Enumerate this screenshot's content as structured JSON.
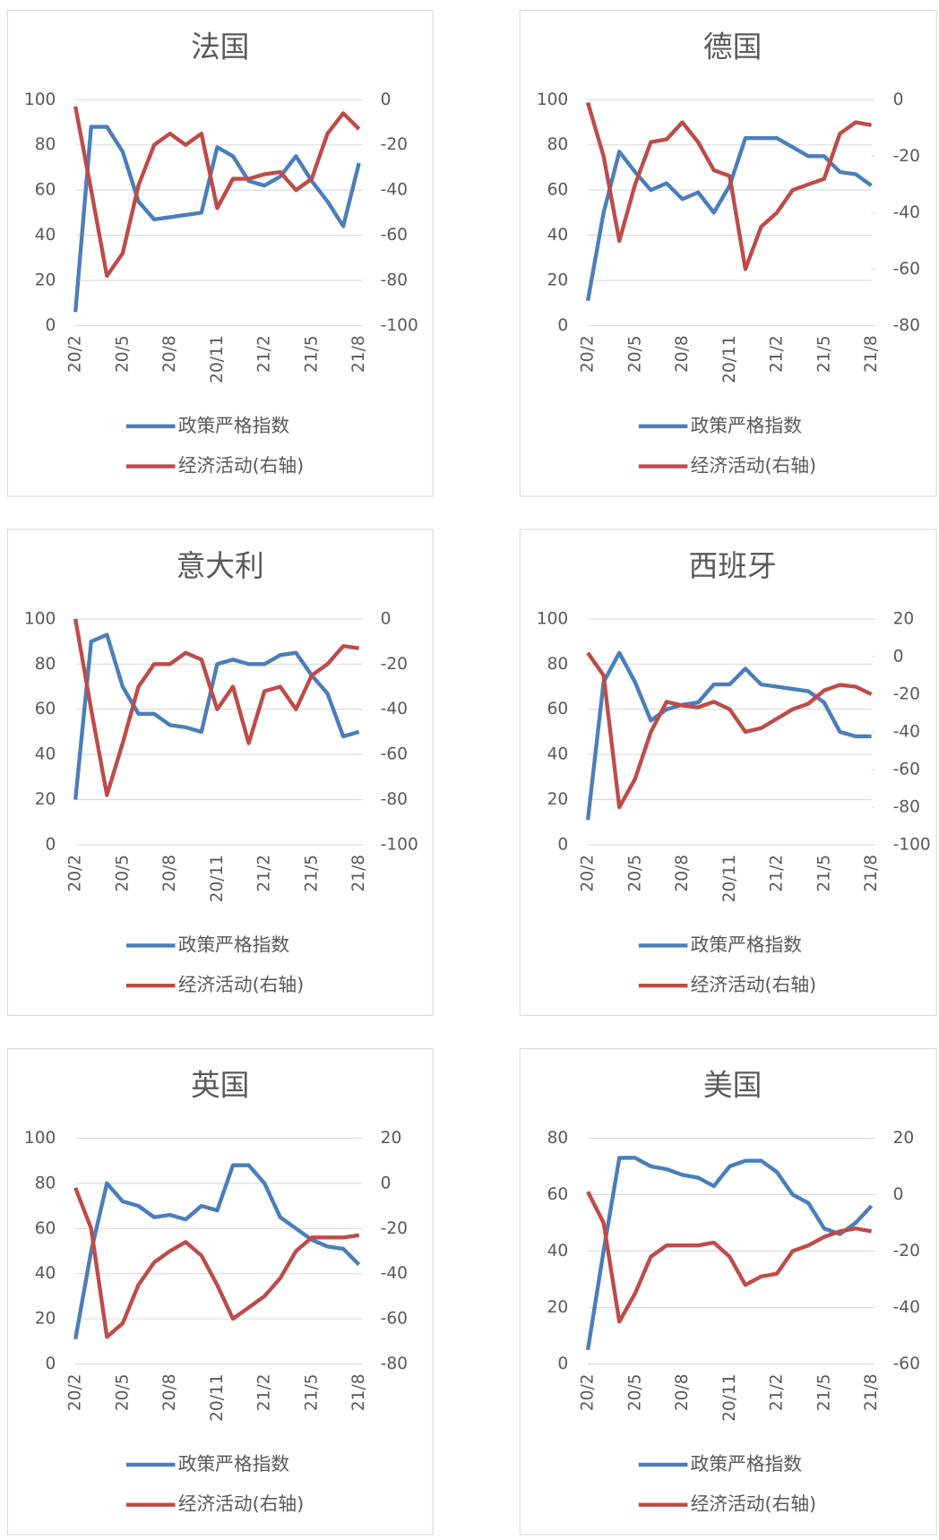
{
  "chart_data": [
    {
      "type": "line",
      "title": "法国",
      "categories": [
        "20/2",
        null,
        null,
        "20/5",
        null,
        null,
        "20/8",
        null,
        null,
        "20/11",
        null,
        null,
        "21/2",
        null,
        null,
        "21/5",
        null,
        null,
        "21/8"
      ],
      "ylim": [
        0,
        100
      ],
      "yticks": [
        0,
        20,
        40,
        60,
        80,
        100
      ],
      "y2lim": [
        -100,
        0
      ],
      "y2ticks": [
        -100,
        -80,
        -60,
        -40,
        -20,
        0
      ],
      "grid": true,
      "legend": "bottom",
      "series": [
        {
          "name": "政策严格指数",
          "color": "#4a7ebb",
          "values": [
            6,
            88,
            88,
            77,
            55,
            47,
            48,
            49,
            50,
            79,
            75,
            64,
            62,
            66,
            75,
            64,
            55,
            44,
            72
          ]
        },
        {
          "name": "经济活动(右轴)",
          "color": "#be4b48",
          "axis": "y2",
          "values": [
            -3,
            -40,
            -78,
            -68,
            -38,
            -20,
            -15,
            -20,
            -15,
            -48,
            -35,
            -35,
            -33,
            -32,
            -40,
            -35,
            -15,
            -6,
            -13
          ]
        }
      ]
    },
    {
      "type": "line",
      "title": "德国",
      "categories": [
        "20/2",
        null,
        null,
        "20/5",
        null,
        null,
        "20/8",
        null,
        null,
        "20/11",
        null,
        null,
        "21/2",
        null,
        null,
        "21/5",
        null,
        null,
        "21/8"
      ],
      "ylim": [
        0,
        100
      ],
      "yticks": [
        0,
        20,
        40,
        60,
        80,
        100
      ],
      "y2lim": [
        -80,
        0
      ],
      "y2ticks": [
        -80,
        -60,
        -40,
        -20,
        0
      ],
      "grid": true,
      "legend": "bottom",
      "series": [
        {
          "name": "政策严格指数",
          "color": "#4a7ebb",
          "values": [
            11,
            50,
            77,
            68,
            60,
            63,
            56,
            59,
            50,
            62,
            83,
            83,
            83,
            79,
            75,
            75,
            68,
            67,
            62
          ]
        },
        {
          "name": "经济活动(右轴)",
          "color": "#be4b48",
          "axis": "y2",
          "values": [
            -1,
            -20,
            -50,
            -30,
            -15,
            -14,
            -8,
            -15,
            -25,
            -27,
            -60,
            -45,
            -40,
            -32,
            -30,
            -28,
            -12,
            -8,
            -9
          ]
        }
      ]
    },
    {
      "type": "line",
      "title": "意大利",
      "categories": [
        "20/2",
        null,
        null,
        "20/5",
        null,
        null,
        "20/8",
        null,
        null,
        "20/11",
        null,
        null,
        "21/2",
        null,
        null,
        "21/5",
        null,
        null,
        "21/8"
      ],
      "ylim": [
        0,
        100
      ],
      "yticks": [
        0,
        20,
        40,
        60,
        80,
        100
      ],
      "y2lim": [
        -100,
        0
      ],
      "y2ticks": [
        -100,
        -80,
        -60,
        -40,
        -20,
        0
      ],
      "grid": true,
      "legend": "bottom",
      "series": [
        {
          "name": "政策严格指数",
          "color": "#4a7ebb",
          "values": [
            20,
            90,
            93,
            70,
            58,
            58,
            53,
            52,
            50,
            80,
            82,
            80,
            80,
            84,
            85,
            75,
            67,
            48,
            50
          ]
        },
        {
          "name": "经济活动(右轴)",
          "color": "#be4b48",
          "axis": "y2",
          "values": [
            0,
            -40,
            -78,
            -55,
            -30,
            -20,
            -20,
            -15,
            -18,
            -40,
            -30,
            -55,
            -32,
            -30,
            -40,
            -25,
            -20,
            -12,
            -13
          ]
        }
      ]
    },
    {
      "type": "line",
      "title": "西班牙",
      "categories": [
        "20/2",
        null,
        null,
        "20/5",
        null,
        null,
        "20/8",
        null,
        null,
        "20/11",
        null,
        null,
        "21/2",
        null,
        null,
        "21/5",
        null,
        null,
        "21/8"
      ],
      "ylim": [
        0,
        100
      ],
      "yticks": [
        0,
        20,
        40,
        60,
        80,
        100
      ],
      "y2lim": [
        -100,
        20
      ],
      "y2ticks": [
        -100,
        -80,
        -60,
        -40,
        -20,
        0,
        20
      ],
      "grid": true,
      "legend": "bottom",
      "series": [
        {
          "name": "政策严格指数",
          "color": "#4a7ebb",
          "values": [
            11,
            72,
            85,
            72,
            55,
            60,
            62,
            63,
            71,
            71,
            78,
            71,
            70,
            69,
            68,
            63,
            50,
            48,
            48
          ]
        },
        {
          "name": "经济活动(右轴)",
          "color": "#be4b48",
          "axis": "y2",
          "values": [
            2,
            -10,
            -80,
            -65,
            -40,
            -24,
            -26,
            -27,
            -24,
            -28,
            -40,
            -38,
            -33,
            -28,
            -25,
            -18,
            -15,
            -16,
            -20
          ]
        }
      ]
    },
    {
      "type": "line",
      "title": "英国",
      "categories": [
        "20/2",
        null,
        null,
        "20/5",
        null,
        null,
        "20/8",
        null,
        null,
        "20/11",
        null,
        null,
        "21/2",
        null,
        null,
        "21/5",
        null,
        null,
        "21/8"
      ],
      "ylim": [
        0,
        100
      ],
      "yticks": [
        0,
        20,
        40,
        60,
        80,
        100
      ],
      "y2lim": [
        -80,
        20
      ],
      "y2ticks": [
        -80,
        -60,
        -40,
        -20,
        0,
        20
      ],
      "grid": true,
      "legend": "bottom",
      "series": [
        {
          "name": "政策严格指数",
          "color": "#4a7ebb",
          "values": [
            11,
            50,
            80,
            72,
            70,
            65,
            66,
            64,
            70,
            68,
            88,
            88,
            80,
            65,
            60,
            55,
            52,
            51,
            44
          ]
        },
        {
          "name": "经济活动(右轴)",
          "color": "#be4b48",
          "axis": "y2",
          "values": [
            -2,
            -20,
            -68,
            -62,
            -45,
            -35,
            -30,
            -26,
            -32,
            -45,
            -60,
            -55,
            -50,
            -42,
            -30,
            -24,
            -24,
            -24,
            -23
          ]
        }
      ]
    },
    {
      "type": "line",
      "title": "美国",
      "categories": [
        "20/2",
        null,
        null,
        "20/5",
        null,
        null,
        "20/8",
        null,
        null,
        "20/11",
        null,
        null,
        "21/2",
        null,
        null,
        "21/5",
        null,
        null,
        "21/8"
      ],
      "ylim": [
        0,
        80
      ],
      "yticks": [
        0,
        20,
        40,
        60,
        80
      ],
      "y2lim": [
        -60,
        20
      ],
      "y2ticks": [
        -60,
        -40,
        -20,
        0,
        20
      ],
      "grid": true,
      "legend": "bottom",
      "series": [
        {
          "name": "政策严格指数",
          "color": "#4a7ebb",
          "values": [
            5,
            40,
            73,
            73,
            70,
            69,
            67,
            66,
            63,
            70,
            72,
            72,
            68,
            60,
            57,
            48,
            46,
            50,
            56
          ]
        },
        {
          "name": "经济活动(右轴)",
          "color": "#be4b48",
          "axis": "y2",
          "values": [
            1,
            -10,
            -45,
            -35,
            -22,
            -18,
            -18,
            -18,
            -17,
            -22,
            -32,
            -29,
            -28,
            -20,
            -18,
            -15,
            -13,
            -12,
            -13
          ]
        }
      ]
    }
  ]
}
